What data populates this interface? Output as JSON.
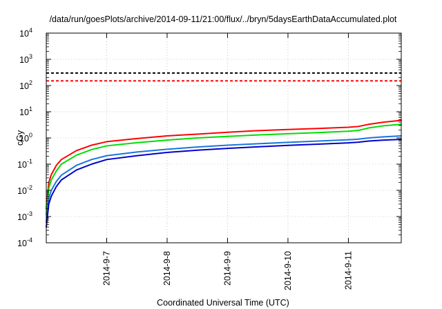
{
  "chart_data": {
    "type": "line",
    "title": "/data/run/goesPlots/archive/2014-09-11/21:00/flux/../bryn/5daysEarthDataAccumulated.plot",
    "xlabel": "Coordinated Universal Time (UTC)",
    "ylabel": "cGy",
    "x_scale": "time",
    "xlim": [
      "2014-09-06T00:00",
      "2014-09-11T21:00"
    ],
    "x_ticks": [
      {
        "label": "2014-9-7",
        "value": "2014-09-07T00:00"
      },
      {
        "label": "2014-9-8",
        "value": "2014-09-08T00:00"
      },
      {
        "label": "2014-9-9",
        "value": "2014-09-09T00:00"
      },
      {
        "label": "2014-9-10",
        "value": "2014-09-10T00:00"
      },
      {
        "label": "2014-9-11",
        "value": "2014-09-11T00:00"
      }
    ],
    "y_scale": "log",
    "ylim": [
      0.0001,
      10000
    ],
    "y_ticks": [
      {
        "base": "10",
        "exp": "-4",
        "value": 0.0001
      },
      {
        "base": "10",
        "exp": "-3",
        "value": 0.001
      },
      {
        "base": "10",
        "exp": "-2",
        "value": 0.01
      },
      {
        "base": "10",
        "exp": "-1",
        "value": 0.1
      },
      {
        "base": "10",
        "exp": "0",
        "value": 1
      },
      {
        "base": "10",
        "exp": "1",
        "value": 10
      },
      {
        "base": "10",
        "exp": "2",
        "value": 100
      },
      {
        "base": "10",
        "exp": "3",
        "value": 1000
      },
      {
        "base": "10",
        "exp": "4",
        "value": 10000
      }
    ],
    "grid": true,
    "reference_lines": [
      {
        "y": 300,
        "color": "#000000",
        "style": "dashed"
      },
      {
        "y": 150,
        "color": "#ff0000",
        "style": "dashed"
      }
    ],
    "series": [
      {
        "color": "#ff0000",
        "x": [
          "2014-09-06T00:00",
          "2014-09-06T01:00",
          "2014-09-06T02:00",
          "2014-09-06T04:00",
          "2014-09-06T06:00",
          "2014-09-06T12:00",
          "2014-09-06T18:00",
          "2014-09-07T00:00",
          "2014-09-07T12:00",
          "2014-09-08T00:00",
          "2014-09-08T12:00",
          "2014-09-09T00:00",
          "2014-09-09T12:00",
          "2014-09-10T00:00",
          "2014-09-10T12:00",
          "2014-09-11T00:00",
          "2014-09-11T04:00",
          "2014-09-11T08:00",
          "2014-09-11T14:00",
          "2014-09-11T21:00"
        ],
        "values": [
          0.002,
          0.02,
          0.04,
          0.09,
          0.15,
          0.33,
          0.53,
          0.72,
          0.95,
          1.2,
          1.4,
          1.65,
          1.9,
          2.1,
          2.3,
          2.55,
          2.75,
          3.3,
          4.0,
          4.7
        ]
      },
      {
        "color": "#00dd00",
        "x": [
          "2014-09-06T00:00",
          "2014-09-06T01:00",
          "2014-09-06T02:00",
          "2014-09-06T04:00",
          "2014-09-06T06:00",
          "2014-09-06T12:00",
          "2014-09-06T18:00",
          "2014-09-07T00:00",
          "2014-09-07T12:00",
          "2014-09-08T00:00",
          "2014-09-08T12:00",
          "2014-09-09T00:00",
          "2014-09-09T12:00",
          "2014-09-10T00:00",
          "2014-09-10T12:00",
          "2014-09-11T00:00",
          "2014-09-11T04:00",
          "2014-09-11T08:00",
          "2014-09-11T14:00",
          "2014-09-11T21:00"
        ],
        "values": [
          0.0012,
          0.012,
          0.025,
          0.055,
          0.1,
          0.22,
          0.36,
          0.5,
          0.66,
          0.83,
          1.0,
          1.15,
          1.3,
          1.45,
          1.6,
          1.8,
          1.95,
          2.4,
          2.9,
          3.3
        ]
      },
      {
        "color": "#1a75d9",
        "x": [
          "2014-09-06T00:00",
          "2014-09-06T01:00",
          "2014-09-06T02:00",
          "2014-09-06T04:00",
          "2014-09-06T06:00",
          "2014-09-06T12:00",
          "2014-09-06T18:00",
          "2014-09-07T00:00",
          "2014-09-07T12:00",
          "2014-09-08T00:00",
          "2014-09-08T12:00",
          "2014-09-09T00:00",
          "2014-09-09T12:00",
          "2014-09-10T00:00",
          "2014-09-10T12:00",
          "2014-09-11T00:00",
          "2014-09-11T04:00",
          "2014-09-11T08:00",
          "2014-09-11T14:00",
          "2014-09-11T21:00"
        ],
        "values": [
          0.0006,
          0.005,
          0.01,
          0.022,
          0.038,
          0.09,
          0.15,
          0.21,
          0.29,
          0.37,
          0.45,
          0.53,
          0.6,
          0.68,
          0.76,
          0.85,
          0.9,
          1.0,
          1.1,
          1.2
        ]
      },
      {
        "color": "#0000cc",
        "x": [
          "2014-09-06T00:00",
          "2014-09-06T01:00",
          "2014-09-06T02:00",
          "2014-09-06T04:00",
          "2014-09-06T06:00",
          "2014-09-06T12:00",
          "2014-09-06T18:00",
          "2014-09-07T00:00",
          "2014-09-07T12:00",
          "2014-09-08T00:00",
          "2014-09-08T12:00",
          "2014-09-09T00:00",
          "2014-09-09T12:00",
          "2014-09-10T00:00",
          "2014-09-10T12:00",
          "2014-09-11T00:00",
          "2014-09-11T04:00",
          "2014-09-11T08:00",
          "2014-09-11T14:00",
          "2014-09-11T21:00"
        ],
        "values": [
          0.0004,
          0.003,
          0.006,
          0.014,
          0.025,
          0.06,
          0.1,
          0.15,
          0.21,
          0.28,
          0.34,
          0.4,
          0.46,
          0.52,
          0.58,
          0.65,
          0.69,
          0.76,
          0.83,
          0.88
        ]
      }
    ]
  }
}
